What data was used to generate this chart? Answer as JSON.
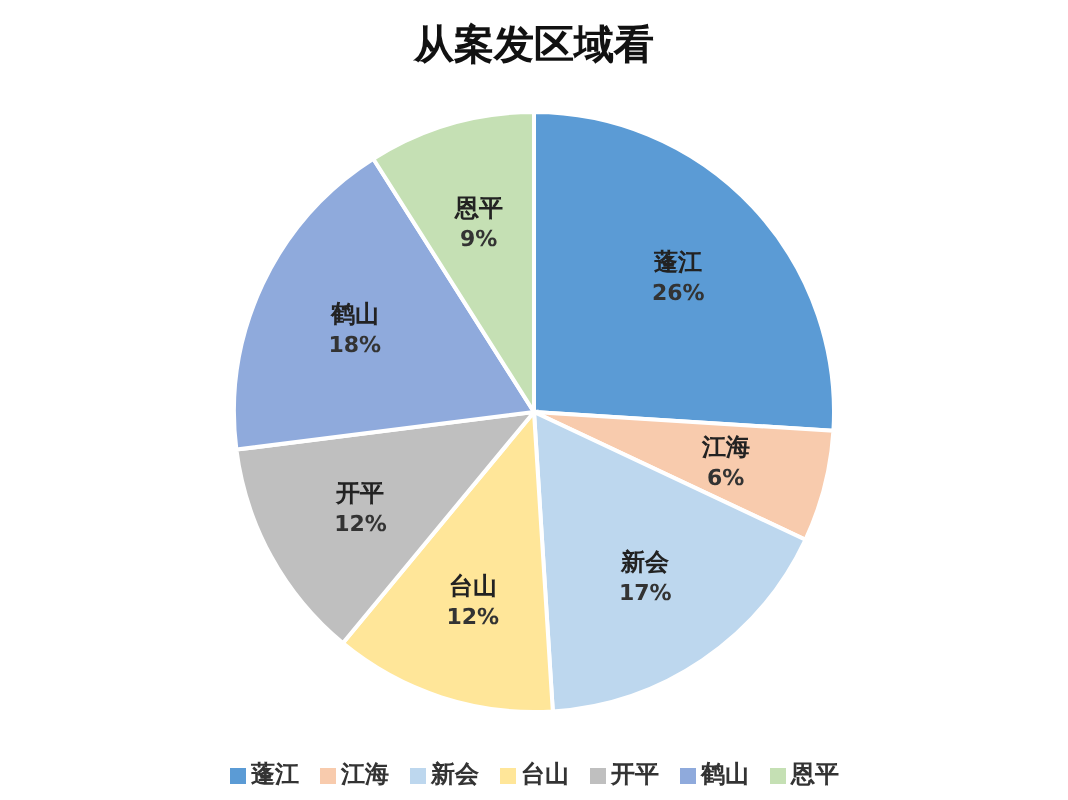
{
  "chart_data": {
    "type": "pie",
    "title": "从案发区域看",
    "categories": [
      "蓬江",
      "江海",
      "新会",
      "台山",
      "开平",
      "鹤山",
      "恩平"
    ],
    "values": [
      26,
      6,
      17,
      12,
      12,
      18,
      9
    ],
    "value_labels": [
      "26%",
      "6%",
      "17%",
      "12%",
      "12%",
      "18%",
      "9%"
    ],
    "colors": [
      "#5b9bd5",
      "#f8cbad",
      "#bdd7ee",
      "#ffe699",
      "#bfbfbf",
      "#8faadc",
      "#c5e0b4"
    ],
    "legend": "bottom"
  }
}
